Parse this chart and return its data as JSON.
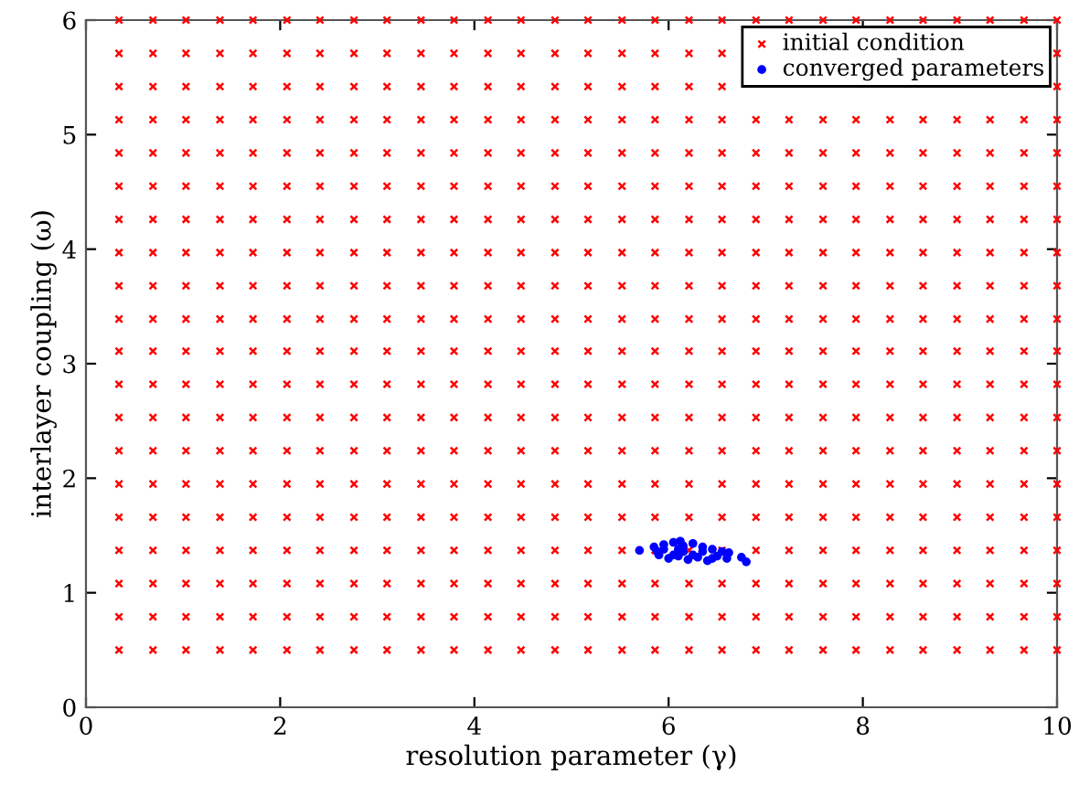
{
  "chart_data": {
    "type": "scatter",
    "xlabel": "resolution parameter (γ)",
    "ylabel": "interlayer coupling (ω)",
    "xlim": [
      0,
      10
    ],
    "ylim": [
      0,
      6
    ],
    "xticks": [
      0,
      2,
      4,
      6,
      8,
      10
    ],
    "yticks": [
      0,
      1,
      2,
      3,
      4,
      5,
      6
    ],
    "grid": false,
    "legend": "top right",
    "series": [
      {
        "name": "initial condition",
        "color": "#ff0000",
        "marker": "cross",
        "x": [
          0.34,
          0.69,
          1.03,
          1.38,
          1.72,
          2.07,
          2.41,
          2.76,
          3.1,
          3.45,
          3.79,
          4.14,
          4.48,
          4.83,
          5.17,
          5.52,
          5.86,
          6.21,
          6.55,
          6.9,
          7.24,
          7.59,
          7.93,
          8.28,
          8.62,
          8.97,
          9.31,
          9.66,
          10,
          0.34,
          0.69,
          1.03,
          1.38,
          1.72,
          2.07,
          2.41,
          2.76,
          3.1,
          3.45,
          3.79,
          4.14,
          4.48,
          4.83,
          5.17,
          5.52,
          5.86,
          6.21,
          6.55,
          6.9,
          7.24,
          7.59,
          7.93,
          8.28,
          8.62,
          8.97,
          9.31,
          9.66,
          10,
          0.34,
          0.69,
          1.03,
          1.38,
          1.72,
          2.07,
          2.41,
          2.76,
          3.1,
          3.45,
          3.79,
          4.14,
          4.48,
          4.83,
          5.17,
          5.52,
          5.86,
          6.21,
          6.55,
          6.9,
          7.24,
          7.59,
          7.93,
          8.28,
          8.62,
          8.97,
          9.31,
          9.66,
          10,
          0.34,
          0.69,
          1.03,
          1.38,
          1.72,
          2.07,
          2.41,
          2.76,
          3.1,
          3.45,
          3.79,
          4.14,
          4.48,
          4.83,
          5.17,
          5.52,
          5.86,
          6.21,
          6.55,
          6.9,
          7.24,
          7.59,
          7.93,
          8.28,
          8.62,
          8.97,
          9.31,
          9.66,
          10,
          0.34,
          0.69,
          1.03,
          1.38,
          1.72,
          2.07,
          2.41,
          2.76,
          3.1,
          3.45,
          3.79,
          4.14,
          4.48,
          4.83,
          5.17,
          5.52,
          5.86,
          6.21,
          6.55,
          6.9,
          7.24,
          7.59,
          7.93,
          8.28,
          8.62,
          8.97,
          9.31,
          9.66,
          10,
          0.34,
          0.69,
          1.03,
          1.38,
          1.72,
          2.07,
          2.41,
          2.76,
          3.1,
          3.45,
          3.79,
          4.14,
          4.48,
          4.83,
          5.17,
          5.52,
          5.86,
          6.21,
          6.55,
          6.9,
          7.24,
          7.59,
          7.93,
          8.28,
          8.62,
          8.97,
          9.31,
          9.66,
          10,
          0.34,
          0.69,
          1.03,
          1.38,
          1.72,
          2.07,
          2.41,
          2.76,
          3.1,
          3.45,
          3.79,
          4.14,
          4.48,
          4.83,
          5.17,
          5.52,
          5.86,
          6.21,
          6.55,
          6.9,
          7.24,
          7.59,
          7.93,
          8.28,
          8.62,
          8.97,
          9.31,
          9.66,
          10,
          0.34,
          0.69,
          1.03,
          1.38,
          1.72,
          2.07,
          2.41,
          2.76,
          3.1,
          3.45,
          3.79,
          4.14,
          4.48,
          4.83,
          5.17,
          5.52,
          5.86,
          6.21,
          6.55,
          6.9,
          7.24,
          7.59,
          7.93,
          8.28,
          8.62,
          8.97,
          9.31,
          9.66,
          10,
          0.34,
          0.69,
          1.03,
          1.38,
          1.72,
          2.07,
          2.41,
          2.76,
          3.1,
          3.45,
          3.79,
          4.14,
          4.48,
          4.83,
          5.17,
          5.52,
          5.86,
          6.21,
          6.55,
          6.9,
          7.24,
          7.59,
          7.93,
          8.28,
          8.62,
          8.97,
          9.31,
          9.66,
          10,
          0.34,
          0.69,
          1.03,
          1.38,
          1.72,
          2.07,
          2.41,
          2.76,
          3.1,
          3.45,
          3.79,
          4.14,
          4.48,
          4.83,
          5.17,
          5.52,
          5.86,
          6.21,
          6.55,
          6.9,
          7.24,
          7.59,
          7.93,
          8.28,
          8.62,
          8.97,
          9.31,
          9.66,
          10,
          0.34,
          0.69,
          1.03,
          1.38,
          1.72,
          2.07,
          2.41,
          2.76,
          3.1,
          3.45,
          3.79,
          4.14,
          4.48,
          4.83,
          5.17,
          5.52,
          5.86,
          6.21,
          6.55,
          6.9,
          7.24,
          7.59,
          7.93,
          8.28,
          8.62,
          8.97,
          9.31,
          9.66,
          10,
          0.34,
          0.69,
          1.03,
          1.38,
          1.72,
          2.07,
          2.41,
          2.76,
          3.1,
          3.45,
          3.79,
          4.14,
          4.48,
          4.83,
          5.17,
          5.52,
          5.86,
          6.21,
          6.55,
          6.9,
          7.24,
          7.59,
          7.93,
          8.28,
          8.62,
          8.97,
          9.31,
          9.66,
          10,
          0.34,
          0.69,
          1.03,
          1.38,
          1.72,
          2.07,
          2.41,
          2.76,
          3.1,
          3.45,
          3.79,
          4.14,
          4.48,
          4.83,
          5.17,
          5.52,
          5.86,
          6.21,
          6.55,
          6.9,
          7.24,
          7.59,
          7.93,
          8.28,
          8.62,
          8.97,
          9.31,
          9.66,
          10,
          0.34,
          0.69,
          1.03,
          1.38,
          1.72,
          2.07,
          2.41,
          2.76,
          3.1,
          3.45,
          3.79,
          4.14,
          4.48,
          4.83,
          5.17,
          5.52,
          5.86,
          6.21,
          6.55,
          6.9,
          7.24,
          7.59,
          7.93,
          8.28,
          8.62,
          8.97,
          9.31,
          9.66,
          10,
          0.34,
          0.69,
          1.03,
          1.38,
          1.72,
          2.07,
          2.41,
          2.76,
          3.1,
          3.45,
          3.79,
          4.14,
          4.48,
          4.83,
          5.17,
          5.52,
          5.86,
          6.21,
          6.55,
          6.9,
          7.24,
          7.59,
          7.93,
          8.28,
          8.62,
          8.97,
          9.31,
          9.66,
          10,
          0.34,
          0.69,
          1.03,
          1.38,
          1.72,
          2.07,
          2.41,
          2.76,
          3.1,
          3.45,
          3.79,
          4.14,
          4.48,
          4.83,
          5.17,
          5.52,
          5.86,
          6.21,
          6.55,
          6.9,
          7.24,
          7.59,
          7.93,
          8.28,
          8.62,
          8.97,
          9.31,
          9.66,
          10,
          0.34,
          0.69,
          1.03,
          1.38,
          1.72,
          2.07,
          2.41,
          2.76,
          3.1,
          3.45,
          3.79,
          4.14,
          4.48,
          4.83,
          5.17,
          5.52,
          5.86,
          6.21,
          6.55,
          6.9,
          7.24,
          7.59,
          7.93,
          8.28,
          8.62,
          8.97,
          9.31,
          9.66,
          10,
          0.34,
          0.69,
          1.03,
          1.38,
          1.72,
          2.07,
          2.41,
          2.76,
          3.1,
          3.45,
          3.79,
          4.14,
          4.48,
          4.83,
          5.17,
          5.52,
          5.86,
          6.21,
          6.55,
          6.9,
          7.24,
          7.59,
          7.93,
          8.28,
          8.62,
          8.97,
          9.31,
          9.66,
          10,
          0.34,
          0.69,
          1.03,
          1.38,
          1.72,
          2.07,
          2.41,
          2.76,
          3.1,
          3.45,
          3.79,
          4.14,
          4.48,
          4.83,
          5.17,
          5.52,
          5.86,
          6.21,
          6.55,
          6.9,
          7.24,
          7.59,
          7.93,
          8.28,
          8.62,
          8.97,
          9.31,
          9.66,
          10,
          0.34,
          0.69,
          1.03,
          1.38,
          1.72,
          2.07,
          2.41,
          2.76,
          3.1,
          3.45,
          3.79,
          4.14,
          4.48,
          4.83,
          5.17,
          5.52,
          5.86,
          6.21,
          6.55,
          6.9,
          7.24,
          7.59,
          7.93,
          8.28,
          8.62,
          8.97,
          9.31,
          9.66,
          10
        ],
        "values": [
          0.5,
          0.5,
          0.5,
          0.5,
          0.5,
          0.5,
          0.5,
          0.5,
          0.5,
          0.5,
          0.5,
          0.5,
          0.5,
          0.5,
          0.5,
          0.5,
          0.5,
          0.5,
          0.5,
          0.5,
          0.5,
          0.5,
          0.5,
          0.5,
          0.5,
          0.5,
          0.5,
          0.5,
          0.5,
          0.79,
          0.79,
          0.79,
          0.79,
          0.79,
          0.79,
          0.79,
          0.79,
          0.79,
          0.79,
          0.79,
          0.79,
          0.79,
          0.79,
          0.79,
          0.79,
          0.79,
          0.79,
          0.79,
          0.79,
          0.79,
          0.79,
          0.79,
          0.79,
          0.79,
          0.79,
          0.79,
          0.79,
          0.79,
          1.08,
          1.08,
          1.08,
          1.08,
          1.08,
          1.08,
          1.08,
          1.08,
          1.08,
          1.08,
          1.08,
          1.08,
          1.08,
          1.08,
          1.08,
          1.08,
          1.08,
          1.08,
          1.08,
          1.08,
          1.08,
          1.08,
          1.08,
          1.08,
          1.08,
          1.08,
          1.08,
          1.08,
          1.08,
          1.37,
          1.37,
          1.37,
          1.37,
          1.37,
          1.37,
          1.37,
          1.37,
          1.37,
          1.37,
          1.37,
          1.37,
          1.37,
          1.37,
          1.37,
          1.37,
          1.37,
          1.37,
          1.37,
          1.37,
          1.37,
          1.37,
          1.37,
          1.37,
          1.37,
          1.37,
          1.37,
          1.37,
          1.37,
          1.66,
          1.66,
          1.66,
          1.66,
          1.66,
          1.66,
          1.66,
          1.66,
          1.66,
          1.66,
          1.66,
          1.66,
          1.66,
          1.66,
          1.66,
          1.66,
          1.66,
          1.66,
          1.66,
          1.66,
          1.66,
          1.66,
          1.66,
          1.66,
          1.66,
          1.66,
          1.66,
          1.66,
          1.66,
          1.95,
          1.95,
          1.95,
          1.95,
          1.95,
          1.95,
          1.95,
          1.95,
          1.95,
          1.95,
          1.95,
          1.95,
          1.95,
          1.95,
          1.95,
          1.95,
          1.95,
          1.95,
          1.95,
          1.95,
          1.95,
          1.95,
          1.95,
          1.95,
          1.95,
          1.95,
          1.95,
          1.95,
          1.95,
          2.24,
          2.24,
          2.24,
          2.24,
          2.24,
          2.24,
          2.24,
          2.24,
          2.24,
          2.24,
          2.24,
          2.24,
          2.24,
          2.24,
          2.24,
          2.24,
          2.24,
          2.24,
          2.24,
          2.24,
          2.24,
          2.24,
          2.24,
          2.24,
          2.24,
          2.24,
          2.24,
          2.24,
          2.24,
          2.53,
          2.53,
          2.53,
          2.53,
          2.53,
          2.53,
          2.53,
          2.53,
          2.53,
          2.53,
          2.53,
          2.53,
          2.53,
          2.53,
          2.53,
          2.53,
          2.53,
          2.53,
          2.53,
          2.53,
          2.53,
          2.53,
          2.53,
          2.53,
          2.53,
          2.53,
          2.53,
          2.53,
          2.53,
          2.82,
          2.82,
          2.82,
          2.82,
          2.82,
          2.82,
          2.82,
          2.82,
          2.82,
          2.82,
          2.82,
          2.82,
          2.82,
          2.82,
          2.82,
          2.82,
          2.82,
          2.82,
          2.82,
          2.82,
          2.82,
          2.82,
          2.82,
          2.82,
          2.82,
          2.82,
          2.82,
          2.82,
          2.82,
          3.11,
          3.11,
          3.11,
          3.11,
          3.11,
          3.11,
          3.11,
          3.11,
          3.11,
          3.11,
          3.11,
          3.11,
          3.11,
          3.11,
          3.11,
          3.11,
          3.11,
          3.11,
          3.11,
          3.11,
          3.11,
          3.11,
          3.11,
          3.11,
          3.11,
          3.11,
          3.11,
          3.11,
          3.11,
          3.39,
          3.39,
          3.39,
          3.39,
          3.39,
          3.39,
          3.39,
          3.39,
          3.39,
          3.39,
          3.39,
          3.39,
          3.39,
          3.39,
          3.39,
          3.39,
          3.39,
          3.39,
          3.39,
          3.39,
          3.39,
          3.39,
          3.39,
          3.39,
          3.39,
          3.39,
          3.39,
          3.39,
          3.39,
          3.68,
          3.68,
          3.68,
          3.68,
          3.68,
          3.68,
          3.68,
          3.68,
          3.68,
          3.68,
          3.68,
          3.68,
          3.68,
          3.68,
          3.68,
          3.68,
          3.68,
          3.68,
          3.68,
          3.68,
          3.68,
          3.68,
          3.68,
          3.68,
          3.68,
          3.68,
          3.68,
          3.68,
          3.68,
          3.97,
          3.97,
          3.97,
          3.97,
          3.97,
          3.97,
          3.97,
          3.97,
          3.97,
          3.97,
          3.97,
          3.97,
          3.97,
          3.97,
          3.97,
          3.97,
          3.97,
          3.97,
          3.97,
          3.97,
          3.97,
          3.97,
          3.97,
          3.97,
          3.97,
          3.97,
          3.97,
          3.97,
          3.97,
          4.26,
          4.26,
          4.26,
          4.26,
          4.26,
          4.26,
          4.26,
          4.26,
          4.26,
          4.26,
          4.26,
          4.26,
          4.26,
          4.26,
          4.26,
          4.26,
          4.26,
          4.26,
          4.26,
          4.26,
          4.26,
          4.26,
          4.26,
          4.26,
          4.26,
          4.26,
          4.26,
          4.26,
          4.26,
          4.55,
          4.55,
          4.55,
          4.55,
          4.55,
          4.55,
          4.55,
          4.55,
          4.55,
          4.55,
          4.55,
          4.55,
          4.55,
          4.55,
          4.55,
          4.55,
          4.55,
          4.55,
          4.55,
          4.55,
          4.55,
          4.55,
          4.55,
          4.55,
          4.55,
          4.55,
          4.55,
          4.55,
          4.55,
          4.84,
          4.84,
          4.84,
          4.84,
          4.84,
          4.84,
          4.84,
          4.84,
          4.84,
          4.84,
          4.84,
          4.84,
          4.84,
          4.84,
          4.84,
          4.84,
          4.84,
          4.84,
          4.84,
          4.84,
          4.84,
          4.84,
          4.84,
          4.84,
          4.84,
          4.84,
          4.84,
          4.84,
          4.84,
          5.13,
          5.13,
          5.13,
          5.13,
          5.13,
          5.13,
          5.13,
          5.13,
          5.13,
          5.13,
          5.13,
          5.13,
          5.13,
          5.13,
          5.13,
          5.13,
          5.13,
          5.13,
          5.13,
          5.13,
          5.13,
          5.13,
          5.13,
          5.13,
          5.13,
          5.13,
          5.13,
          5.13,
          5.13,
          5.42,
          5.42,
          5.42,
          5.42,
          5.42,
          5.42,
          5.42,
          5.42,
          5.42,
          5.42,
          5.42,
          5.42,
          5.42,
          5.42,
          5.42,
          5.42,
          5.42,
          5.42,
          5.42,
          null,
          null,
          null,
          null,
          null,
          null,
          null,
          null,
          null,
          5.42,
          5.71,
          5.71,
          5.71,
          5.71,
          5.71,
          5.71,
          5.71,
          5.71,
          5.71,
          5.71,
          5.71,
          5.71,
          5.71,
          5.71,
          5.71,
          5.71,
          5.71,
          5.71,
          5.71,
          null,
          null,
          null,
          null,
          null,
          null,
          null,
          null,
          null,
          5.71,
          6,
          6,
          6,
          6,
          6,
          6,
          6,
          6,
          6,
          6,
          6,
          6,
          6,
          6,
          6,
          6,
          6,
          6,
          6,
          6,
          6,
          6,
          6,
          6,
          6,
          6,
          6,
          6,
          6
        ]
      },
      {
        "name": "converged parameters",
        "color": "#0000ff",
        "marker": "circle",
        "x": [
          5.7,
          5.85,
          5.9,
          5.95,
          6.0,
          6.05,
          6.1,
          6.1,
          6.15,
          6.2,
          6.25,
          6.3,
          6.35,
          6.4,
          6.45,
          6.5,
          6.55,
          6.6,
          6.62,
          6.75,
          6.8,
          5.95,
          6.05,
          6.15,
          6.25,
          6.35,
          6.45,
          6.12,
          5.88
        ],
        "values": [
          1.37,
          1.4,
          1.33,
          1.42,
          1.3,
          1.44,
          1.38,
          1.32,
          1.41,
          1.29,
          1.43,
          1.31,
          1.4,
          1.28,
          1.38,
          1.32,
          1.36,
          1.3,
          1.35,
          1.31,
          1.27,
          1.38,
          1.33,
          1.36,
          1.33,
          1.36,
          1.3,
          1.45,
          1.36
        ]
      }
    ]
  }
}
